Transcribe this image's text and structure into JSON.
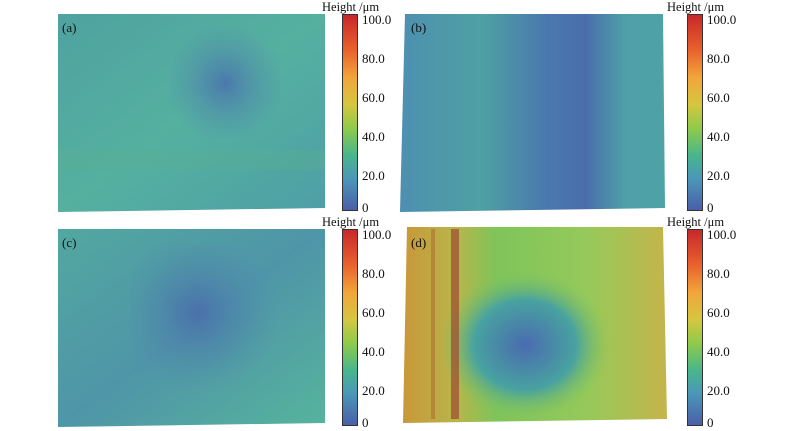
{
  "panels": [
    {
      "label": "(a)"
    },
    {
      "label": "(b)"
    },
    {
      "label": "(c)"
    },
    {
      "label": "(d)"
    }
  ],
  "colorbar": {
    "title": "Height /μm",
    "ticks": [
      "100.0",
      "80.0",
      "60.0",
      "40.0",
      "20.0",
      "0"
    ],
    "gradient_colors": [
      "#c8282a",
      "#e8622d",
      "#f2a53a",
      "#d6c640",
      "#8fcb4a",
      "#48b68c",
      "#4a97b9",
      "#4a5fa8"
    ]
  }
}
